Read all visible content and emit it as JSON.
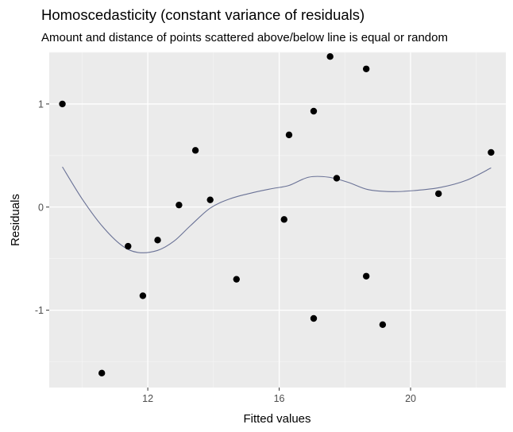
{
  "chart_data": {
    "type": "scatter",
    "title": "Homoscedasticity (constant variance of residuals)",
    "subtitle": "Amount and distance of points scattered above/below line is equal or random",
    "xlabel": "Fitted values",
    "ylabel": "Residuals",
    "xlim": [
      9.0,
      22.9
    ],
    "ylim": [
      -1.75,
      1.5
    ],
    "xticks": [
      12,
      16,
      20
    ],
    "yticks": [
      -1,
      0,
      1
    ],
    "grid": true,
    "points": [
      {
        "x": 9.4,
        "y": 1.0
      },
      {
        "x": 10.6,
        "y": -1.61
      },
      {
        "x": 11.4,
        "y": -0.38
      },
      {
        "x": 11.85,
        "y": -0.86
      },
      {
        "x": 12.3,
        "y": -0.32
      },
      {
        "x": 12.95,
        "y": 0.02
      },
      {
        "x": 13.45,
        "y": 0.55
      },
      {
        "x": 13.9,
        "y": 0.07
      },
      {
        "x": 14.7,
        "y": -0.7
      },
      {
        "x": 16.15,
        "y": -0.12
      },
      {
        "x": 16.3,
        "y": 0.7
      },
      {
        "x": 17.05,
        "y": 0.93
      },
      {
        "x": 17.05,
        "y": -1.08
      },
      {
        "x": 17.55,
        "y": 1.46
      },
      {
        "x": 17.75,
        "y": 0.28
      },
      {
        "x": 18.65,
        "y": 1.34
      },
      {
        "x": 18.65,
        "y": -0.67
      },
      {
        "x": 19.15,
        "y": -1.14
      },
      {
        "x": 20.85,
        "y": 0.13
      },
      {
        "x": 22.45,
        "y": 0.53
      }
    ],
    "smooth_line": [
      {
        "x": 9.4,
        "y": 0.39
      },
      {
        "x": 10.0,
        "y": 0.08
      },
      {
        "x": 10.6,
        "y": -0.18
      },
      {
        "x": 11.2,
        "y": -0.37
      },
      {
        "x": 11.7,
        "y": -0.44
      },
      {
        "x": 12.3,
        "y": -0.42
      },
      {
        "x": 12.8,
        "y": -0.33
      },
      {
        "x": 13.3,
        "y": -0.18
      },
      {
        "x": 13.9,
        "y": -0.01
      },
      {
        "x": 14.5,
        "y": 0.08
      },
      {
        "x": 15.2,
        "y": 0.14
      },
      {
        "x": 15.8,
        "y": 0.18
      },
      {
        "x": 16.3,
        "y": 0.21
      },
      {
        "x": 16.9,
        "y": 0.29
      },
      {
        "x": 17.5,
        "y": 0.29
      },
      {
        "x": 18.1,
        "y": 0.24
      },
      {
        "x": 18.7,
        "y": 0.17
      },
      {
        "x": 19.4,
        "y": 0.15
      },
      {
        "x": 20.1,
        "y": 0.16
      },
      {
        "x": 20.9,
        "y": 0.19
      },
      {
        "x": 21.7,
        "y": 0.26
      },
      {
        "x": 22.45,
        "y": 0.38
      }
    ]
  },
  "colors": {
    "panel_bg": "#ebebeb",
    "grid_major": "#ffffff",
    "grid_minor": "#f5f5f5",
    "point": "#000000",
    "smooth_line": "#6a7296"
  }
}
